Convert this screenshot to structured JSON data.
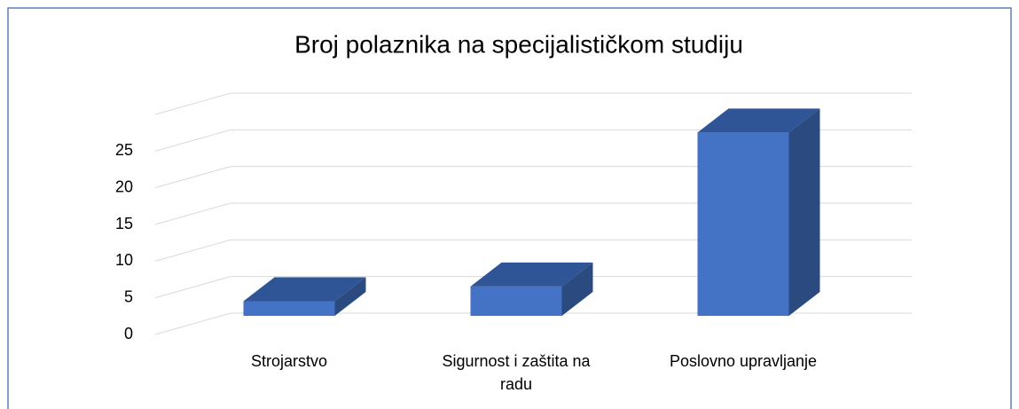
{
  "chart_data": {
    "type": "bar3d",
    "title": "Broj polaznika na specijalističkom studiju",
    "categories": [
      "Strojarstvo",
      "Sigurnost i zaštita na radu",
      "Poslovno upravljanje"
    ],
    "values": [
      2,
      4,
      25
    ],
    "color": "#4472c4",
    "ylim": [
      0,
      30
    ],
    "yticks": [
      0,
      5,
      10,
      15,
      20,
      25
    ],
    "grid": true
  }
}
